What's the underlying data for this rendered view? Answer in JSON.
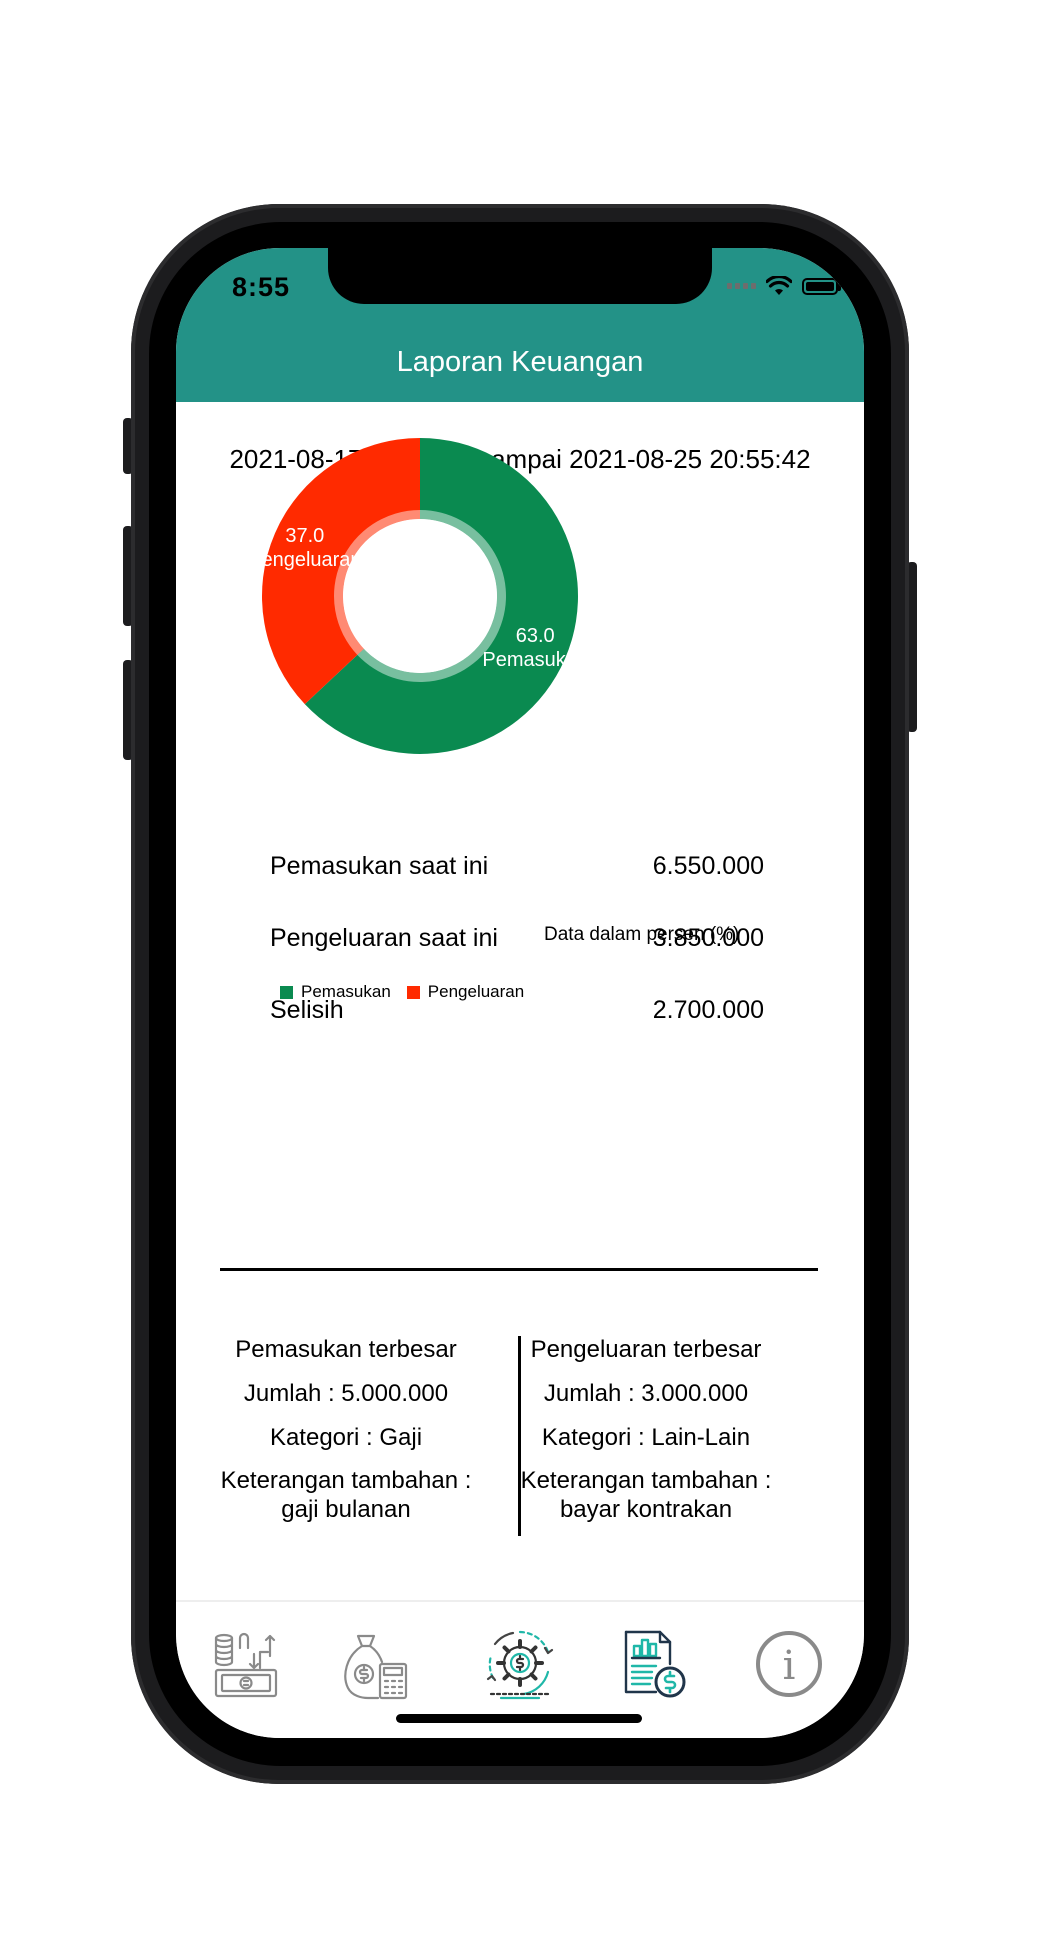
{
  "status_bar": {
    "time": "8:55"
  },
  "header": {
    "title": "Laporan Keuangan"
  },
  "date_range": "2021-08-17 08:13:16 sampai 2021-08-25 20:55:42",
  "colors": {
    "header": "#239287",
    "income": "#0a8a50",
    "expense": "#ff2a00"
  },
  "chart_data": {
    "type": "pie",
    "donut": true,
    "slices": [
      {
        "label": "Pemasukan",
        "value": 63.0,
        "value_label": "63.0",
        "color": "#0a8a50"
      },
      {
        "label": "Pengeluaran",
        "value": 37.0,
        "value_label": "37.0",
        "color": "#ff2a00"
      }
    ],
    "description": "Data dalam persen (%)",
    "legend": [
      "Pemasukan",
      "Pengeluaran"
    ],
    "legend_position": "bottom-left"
  },
  "summary": [
    {
      "label": "Pemasukan saat ini",
      "value": "6.550.000"
    },
    {
      "label": "Pengeluaran saat ini",
      "value": "3.850.000"
    },
    {
      "label": "Selisih",
      "value": "2.700.000"
    }
  ],
  "largest_income": {
    "title": "Pemasukan terbesar",
    "amount": "Jumlah : 5.000.000",
    "category": "Kategori : Gaji",
    "note_label": "Keterangan tambahan :",
    "note": "gaji bulanan"
  },
  "largest_expense": {
    "title": "Pengeluaran terbesar",
    "amount": "Jumlah : 3.000.000",
    "category": "Kategori : Lain-Lain",
    "note_label": "Keterangan tambahan :",
    "note": "bayar kontrakan"
  },
  "tabbar": {
    "items": [
      {
        "icon": "money-transfer-icon",
        "active": false
      },
      {
        "icon": "money-bag-calculator-icon",
        "active": false
      },
      {
        "icon": "gear-dollar-icon",
        "active": false
      },
      {
        "icon": "report-document-icon",
        "active": true
      },
      {
        "icon": "info-icon",
        "active": false
      }
    ]
  }
}
